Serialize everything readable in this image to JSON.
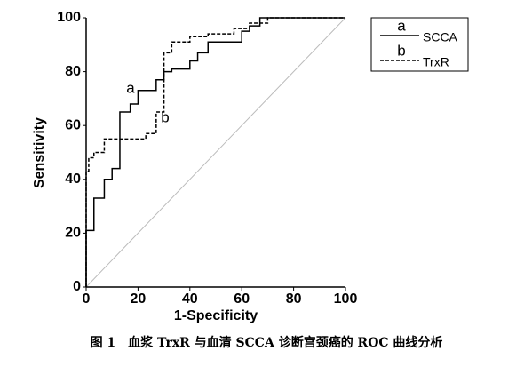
{
  "chart_data": {
    "type": "line",
    "xlabel": "1-Specificity",
    "ylabel": "Sensitivity",
    "caption": "图 1　血浆 TrxR 与血清 SCCA 诊断宫颈癌的 ROC 曲线分析",
    "xlim": [
      0,
      100
    ],
    "ylim": [
      0,
      100
    ],
    "xticks": [
      0,
      20,
      40,
      60,
      80,
      100
    ],
    "yticks": [
      0,
      20,
      40,
      60,
      80,
      100
    ],
    "series": [
      {
        "name": "SCCA",
        "label": "a",
        "color": "#000000",
        "style": "solid",
        "x": [
          0,
          0,
          3,
          3,
          7,
          7,
          10,
          10,
          13,
          13,
          17,
          17,
          20,
          20,
          27,
          27,
          30,
          30,
          33,
          33,
          40,
          40,
          43,
          43,
          47,
          47,
          60,
          60,
          63,
          63,
          67,
          67,
          100
        ],
        "values": [
          0,
          21,
          21,
          33,
          33,
          40,
          40,
          44,
          44,
          65,
          65,
          68,
          68,
          73,
          73,
          77,
          77,
          80,
          80,
          81,
          81,
          84,
          84,
          87,
          87,
          91,
          91,
          95,
          95,
          97,
          97,
          100,
          100
        ]
      },
      {
        "name": "TrxR",
        "label": "b",
        "color": "#000000",
        "style": "dashed",
        "x": [
          0,
          0,
          1,
          1,
          3,
          3,
          7,
          7,
          23,
          23,
          27,
          27,
          30,
          30,
          33,
          33,
          40,
          40,
          47,
          47,
          57,
          57,
          63,
          63,
          70,
          70,
          100
        ],
        "values": [
          0,
          43,
          43,
          48,
          48,
          50,
          50,
          55,
          55,
          57,
          57,
          65,
          65,
          87,
          87,
          91,
          91,
          93,
          93,
          94,
          94,
          96,
          96,
          98,
          98,
          100,
          100
        ]
      }
    ]
  }
}
